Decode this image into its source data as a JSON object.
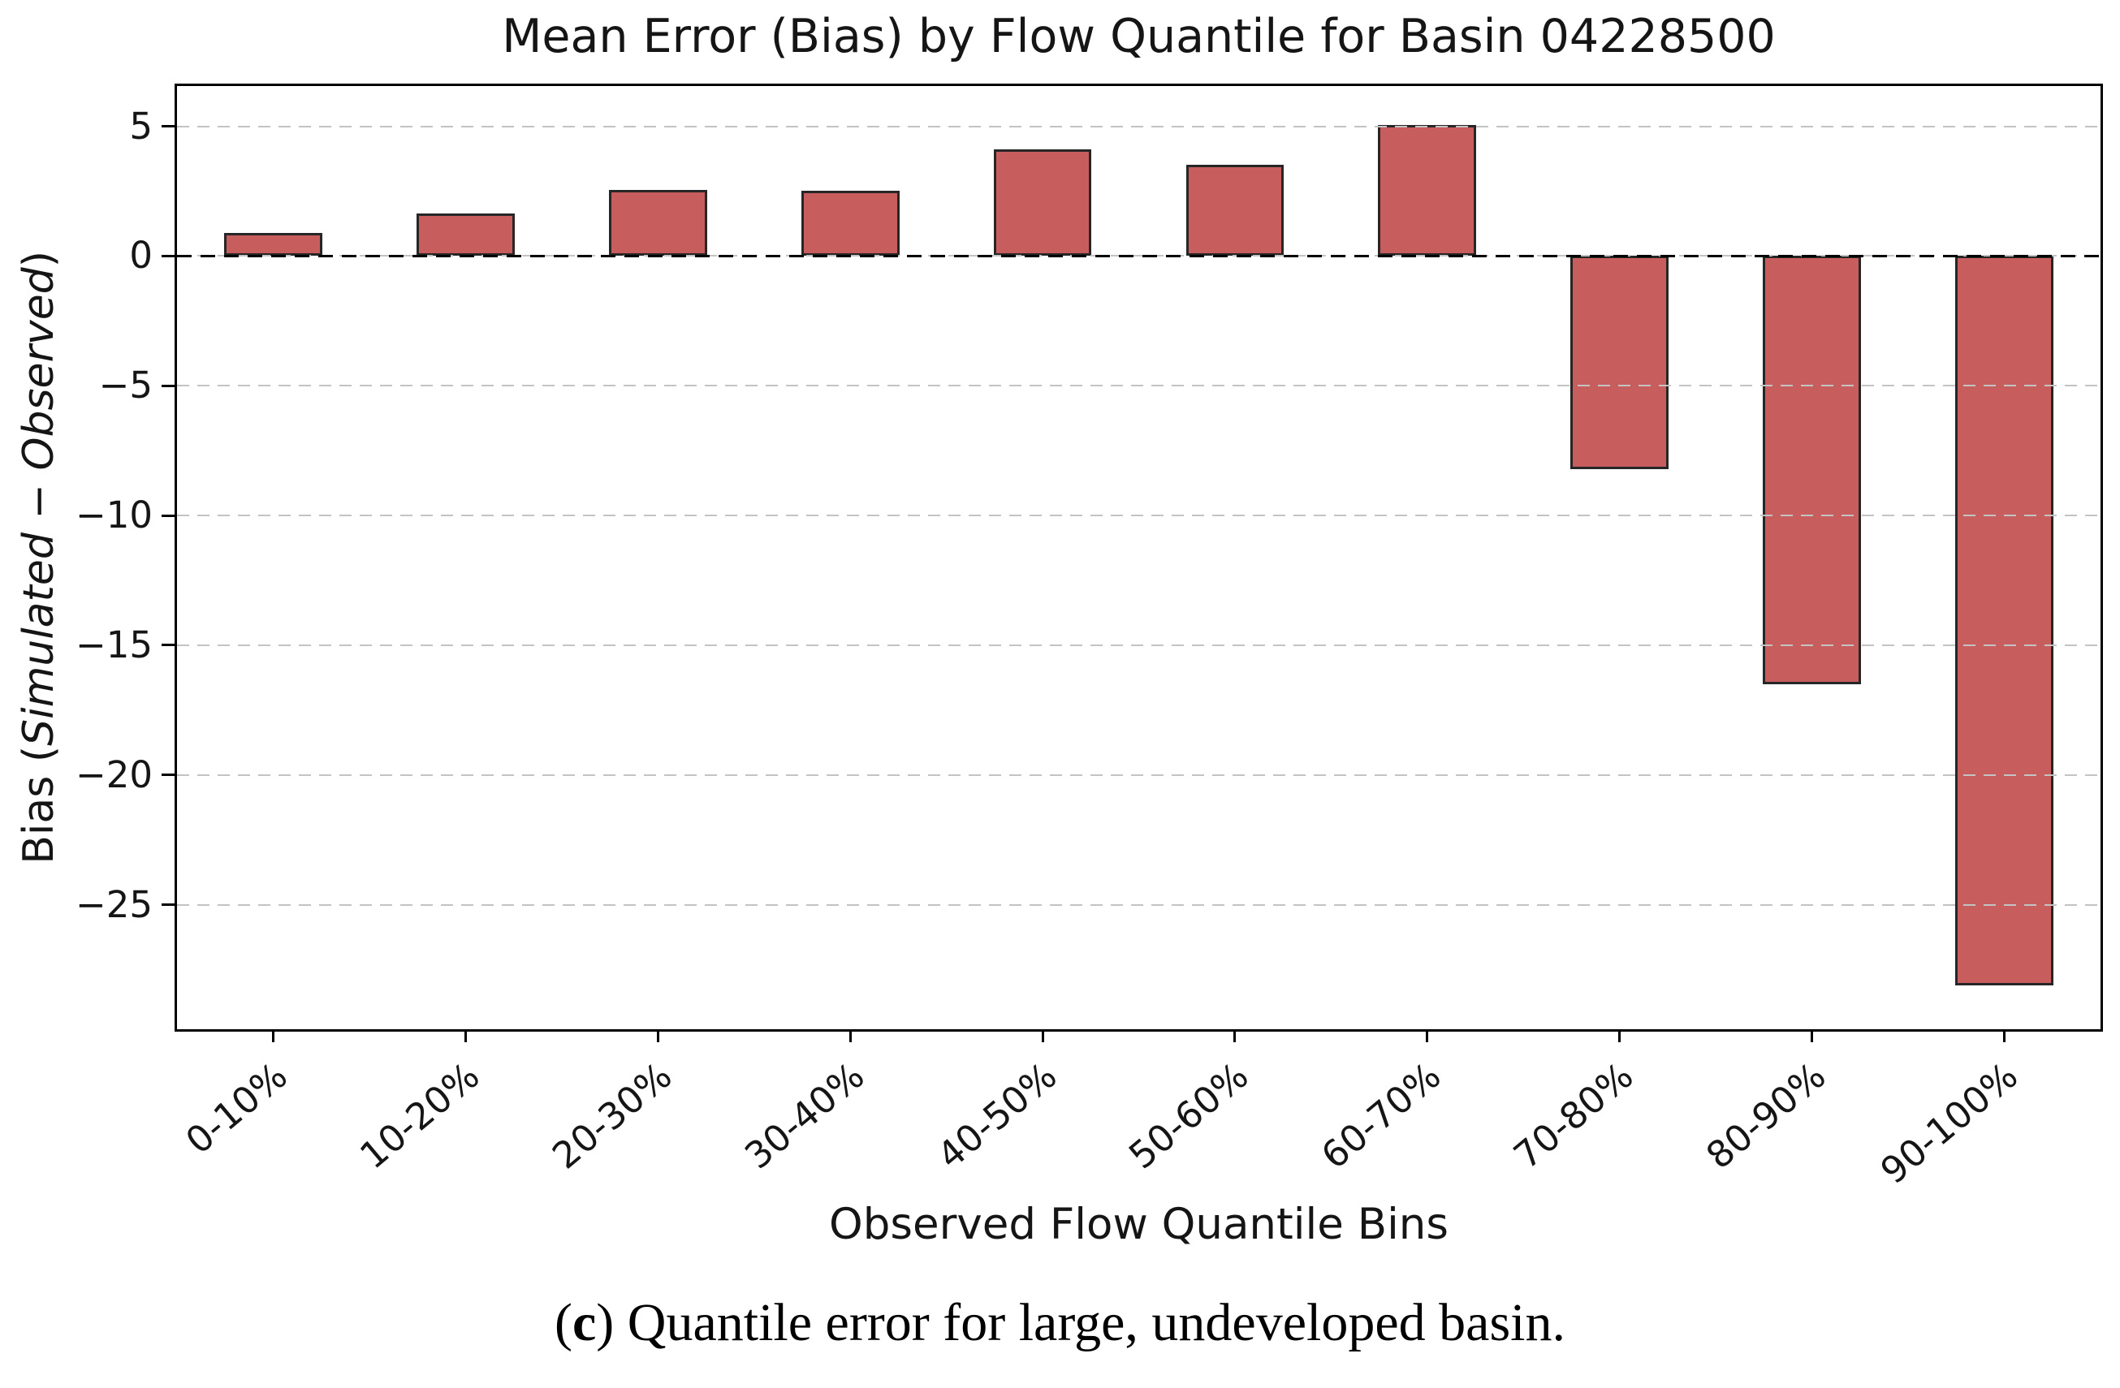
{
  "figure": {
    "caption": {
      "prefix": "(",
      "bold_part": "c",
      "suffix": ") Quantile error for large, undeveloped basin."
    }
  },
  "chart_data": {
    "type": "bar",
    "title": "Mean Error (Bias) by Flow Quantile for Basin 04228500",
    "xlabel": "Observed Flow Quantile Bins",
    "ylabel": {
      "prefix": "Bias (",
      "italic_part": "Simulated − Observed",
      "suffix": ")"
    },
    "categories": [
      "0-10%",
      "10-20%",
      "20-30%",
      "30-40%",
      "40-50%",
      "50-60%",
      "60-70%",
      "70-80%",
      "80-90%",
      "90-100%"
    ],
    "values": [
      0.9,
      1.65,
      2.55,
      2.5,
      4.1,
      3.5,
      5.05,
      -8.2,
      -16.5,
      -28.1
    ],
    "ylim": [
      -29.8,
      6.55
    ],
    "yticks": [
      5,
      0,
      -5,
      -10,
      -15,
      -20,
      -25
    ],
    "ytick_labels": [
      "5",
      "0",
      "−5",
      "−10",
      "−15",
      "−20",
      "−25"
    ],
    "zero_line": "black dashed at y=0",
    "grid": "horizontal dashed gridlines at each ytick, drawn above bars",
    "legend": "none",
    "bar_color": "#C85D5D",
    "bar_edge_color": "#262626",
    "bar_width_frac": 0.51
  }
}
